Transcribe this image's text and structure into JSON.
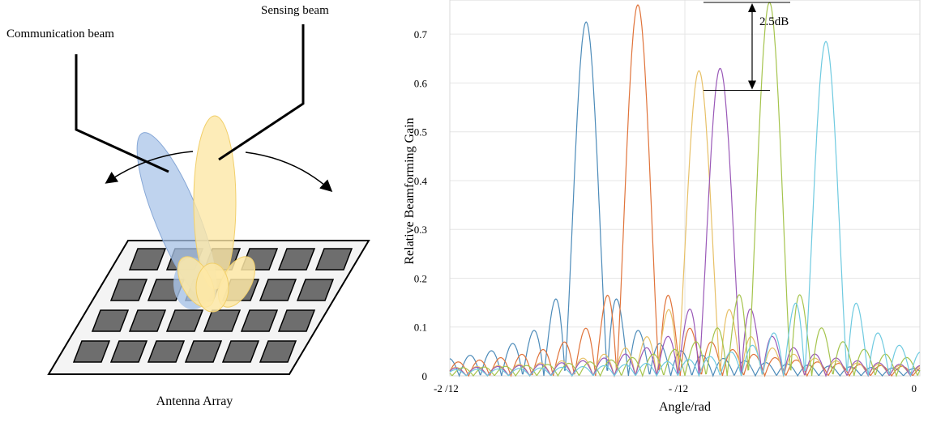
{
  "diagram": {
    "communication_label": "Communication beam",
    "sensing_label": "Sensing beam",
    "array_label": "Antenna Array",
    "colors": {
      "communication_beam": "#a9c4e8",
      "sensing_beam": "#fde7a6",
      "antenna_element": "#6e6e6e"
    }
  },
  "chart_data": {
    "type": "line",
    "title": "",
    "xlabel": "Angle/rad",
    "ylabel": "Relative Beamforming Gain",
    "ylim": [
      0,
      0.77
    ],
    "xlim": [
      0,
      1
    ],
    "x_tick_labels": [
      "-2 /12",
      "- /12",
      "0"
    ],
    "y_ticks": [
      0,
      0.1,
      0.2,
      0.3,
      0.4,
      0.5,
      0.6,
      0.7
    ],
    "grid": true,
    "annotation": "2.5dB",
    "annotation_levels": [
      0.765,
      0.585
    ],
    "series": [
      {
        "color": "#4c8bb9",
        "peak_x": 0.29,
        "peak": 0.725
      },
      {
        "color": "#e0733a",
        "peak_x": 0.4,
        "peak": 0.76
      },
      {
        "color": "#e7c067",
        "peak_x": 0.53,
        "peak": 0.625
      },
      {
        "color": "#9a59b8",
        "peak_x": 0.575,
        "peak": 0.63
      },
      {
        "color": "#a5c44d",
        "peak_x": 0.68,
        "peak": 0.765
      },
      {
        "color": "#6fcae0",
        "peak_x": 0.8,
        "peak": 0.685
      }
    ]
  }
}
